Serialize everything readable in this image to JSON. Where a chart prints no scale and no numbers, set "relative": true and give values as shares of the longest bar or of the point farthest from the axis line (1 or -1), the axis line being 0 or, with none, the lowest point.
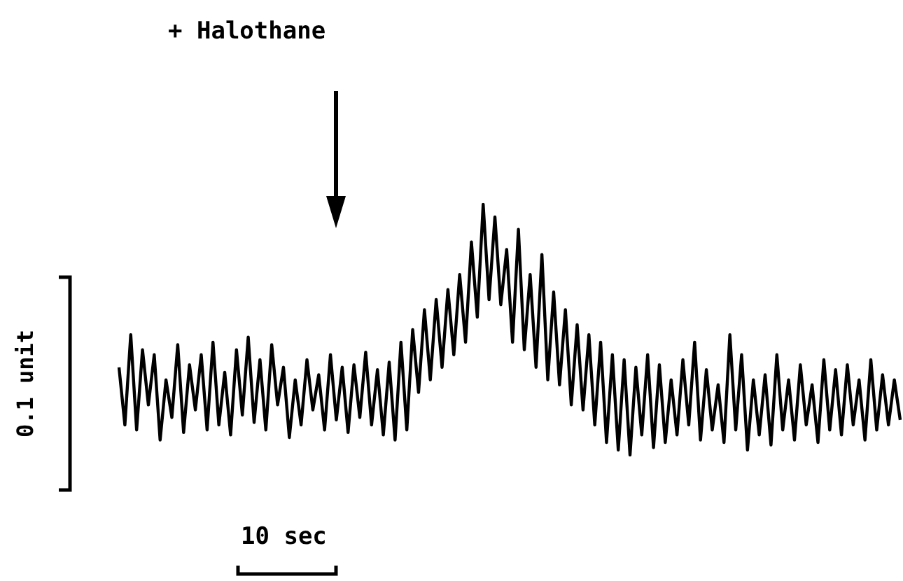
{
  "chart_data": {
    "type": "line",
    "relative": true,
    "annotations": [
      "+ Halothane",
      "0.1 unit",
      "10 sec"
    ],
    "categories": [
      null,
      null,
      null,
      null,
      null,
      null,
      null,
      null,
      null,
      null,
      null,
      null,
      null,
      null,
      null,
      null,
      null,
      null,
      null,
      null,
      null,
      null,
      null,
      null,
      null,
      null,
      null,
      null,
      null,
      null,
      null,
      null,
      null,
      null,
      null,
      null,
      null,
      null,
      null,
      null,
      null,
      null,
      null,
      null,
      null,
      null,
      null,
      null,
      null,
      null,
      null,
      null,
      null,
      null,
      null,
      null,
      null,
      null,
      null,
      null,
      null,
      null,
      null,
      null,
      null,
      null,
      null,
      null,
      null,
      null,
      null,
      null,
      null,
      null,
      null,
      null,
      null,
      null,
      null,
      null,
      null,
      null,
      null,
      null,
      null,
      null,
      null,
      null,
      null,
      null,
      null,
      null,
      null,
      null,
      null,
      null,
      null,
      null,
      null,
      null,
      null,
      null,
      null,
      null,
      null,
      null,
      null,
      null,
      null,
      null,
      null,
      null,
      null,
      null,
      null,
      null,
      null,
      null,
      null,
      null,
      null,
      null,
      null,
      null,
      null,
      null,
      null,
      null,
      null,
      null,
      null,
      null,
      null,
      null
    ],
    "series": [
      {
        "color": "#000000",
        "values": [
          0.35,
          0.12,
          0.48,
          0.1,
          0.42,
          0.2,
          0.4,
          0.06,
          0.3,
          0.15,
          0.44,
          0.09,
          0.36,
          0.18,
          0.4,
          0.1,
          0.45,
          0.12,
          0.33,
          0.08,
          0.42,
          0.16,
          0.47,
          0.13,
          0.38,
          0.1,
          0.44,
          0.2,
          0.35,
          0.07,
          0.3,
          0.12,
          0.38,
          0.18,
          0.32,
          0.1,
          0.4,
          0.14,
          0.35,
          0.09,
          0.36,
          0.15,
          0.41,
          0.12,
          0.34,
          0.08,
          0.37,
          0.06,
          0.45,
          0.1,
          0.5,
          0.25,
          0.58,
          0.3,
          0.62,
          0.35,
          0.66,
          0.4,
          0.72,
          0.45,
          0.85,
          0.55,
          1.0,
          0.62,
          0.95,
          0.6,
          0.82,
          0.45,
          0.9,
          0.42,
          0.72,
          0.35,
          0.8,
          0.3,
          0.65,
          0.28,
          0.58,
          0.2,
          0.52,
          0.18,
          0.48,
          0.12,
          0.45,
          0.05,
          0.4,
          0.02,
          0.38,
          0.0,
          0.35,
          0.08,
          0.4,
          0.03,
          0.36,
          0.05,
          0.3,
          0.08,
          0.38,
          0.12,
          0.45,
          0.06,
          0.34,
          0.1,
          0.28,
          0.05,
          0.48,
          0.1,
          0.4,
          0.02,
          0.3,
          0.08,
          0.32,
          0.04,
          0.4,
          0.1,
          0.3,
          0.06,
          0.36,
          0.12,
          0.28,
          0.05,
          0.38,
          0.1,
          0.34,
          0.08,
          0.36,
          0.12,
          0.3,
          0.06,
          0.38,
          0.1,
          0.32,
          0.12,
          0.3,
          0.14
        ]
      }
    ],
    "grid": false,
    "line_style": "solid"
  }
}
